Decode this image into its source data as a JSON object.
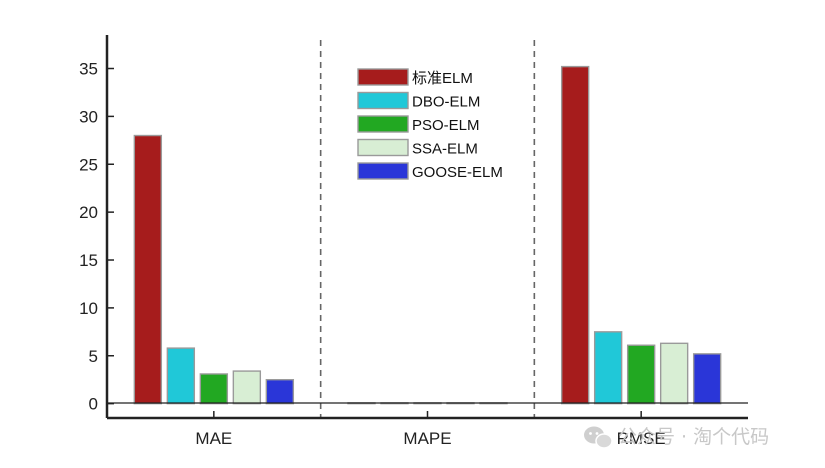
{
  "chart_data": {
    "type": "bar",
    "categories": [
      "MAE",
      "MAPE",
      "RMSE"
    ],
    "series": [
      {
        "name": "标准ELM",
        "color": "#a61c1c",
        "values": [
          28.0,
          0.08,
          35.2
        ]
      },
      {
        "name": "DBO-ELM",
        "color": "#20c8d8",
        "values": [
          5.8,
          0.02,
          7.5
        ]
      },
      {
        "name": "PSO-ELM",
        "color": "#22a822",
        "values": [
          3.1,
          0.02,
          6.1
        ]
      },
      {
        "name": "SSA-ELM",
        "color": "#d8eed4",
        "values": [
          3.4,
          0.02,
          6.3
        ]
      },
      {
        "name": "GOOSE-ELM",
        "color": "#2a36d8",
        "values": [
          2.5,
          0.02,
          5.2
        ]
      }
    ],
    "yticks": [
      0,
      5,
      10,
      15,
      20,
      25,
      30,
      35
    ],
    "ylim": [
      -1.5,
      38.5
    ],
    "grid": false,
    "legend_position": "top-center",
    "group_separators": "dashed"
  },
  "watermark": {
    "text": "公众号 · 淘个代码",
    "icon": "wechat-icon"
  }
}
